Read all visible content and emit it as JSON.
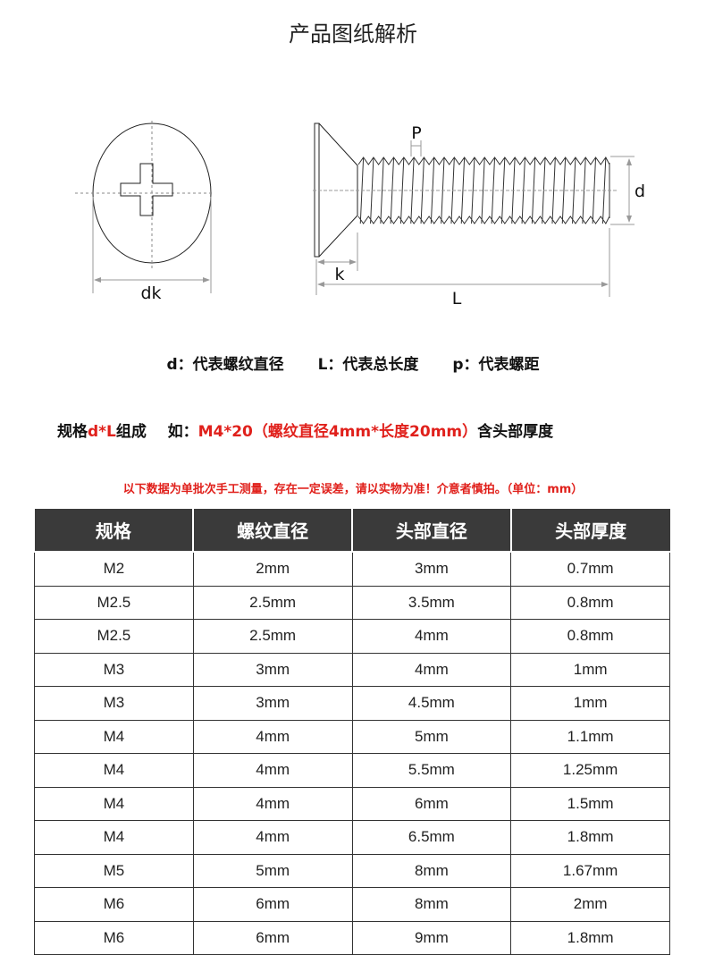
{
  "title": "产品图纸解析",
  "diagram": {
    "labels": {
      "dk": "dk",
      "p": "P",
      "d": "d",
      "k": "k",
      "L": "L"
    }
  },
  "legend": [
    "d：代表螺纹直径",
    "L：代表总长度",
    "p：代表螺距"
  ],
  "spec": {
    "prefix": "规格",
    "formula": "d*L",
    "middle": "组成    如：",
    "example": "M4*20（螺纹直径4mm*长度20mm）",
    "suffix": "含头部厚度"
  },
  "note": "以下数据为单批次手工测量，存在一定误差，请以实物为准！介意者慎拍。（单位：mm）",
  "colors": {
    "accent": "#e0201b",
    "header_bg": "#3a3a3a"
  },
  "table": {
    "headers": [
      "规格",
      "螺纹直径",
      "头部直径",
      "头部厚度"
    ],
    "rows": [
      [
        "M2",
        "2mm",
        "3mm",
        "0.7mm"
      ],
      [
        "M2.5",
        "2.5mm",
        "3.5mm",
        "0.8mm"
      ],
      [
        "M2.5",
        "2.5mm",
        "4mm",
        "0.8mm"
      ],
      [
        "M3",
        "3mm",
        "4mm",
        "1mm"
      ],
      [
        "M3",
        "3mm",
        "4.5mm",
        "1mm"
      ],
      [
        "M4",
        "4mm",
        "5mm",
        "1.1mm"
      ],
      [
        "M4",
        "4mm",
        "5.5mm",
        "1.25mm"
      ],
      [
        "M4",
        "4mm",
        "6mm",
        "1.5mm"
      ],
      [
        "M4",
        "4mm",
        "6.5mm",
        "1.8mm"
      ],
      [
        "M5",
        "5mm",
        "8mm",
        "1.67mm"
      ],
      [
        "M6",
        "6mm",
        "8mm",
        "2mm"
      ],
      [
        "M6",
        "6mm",
        "9mm",
        "1.8mm"
      ]
    ]
  }
}
